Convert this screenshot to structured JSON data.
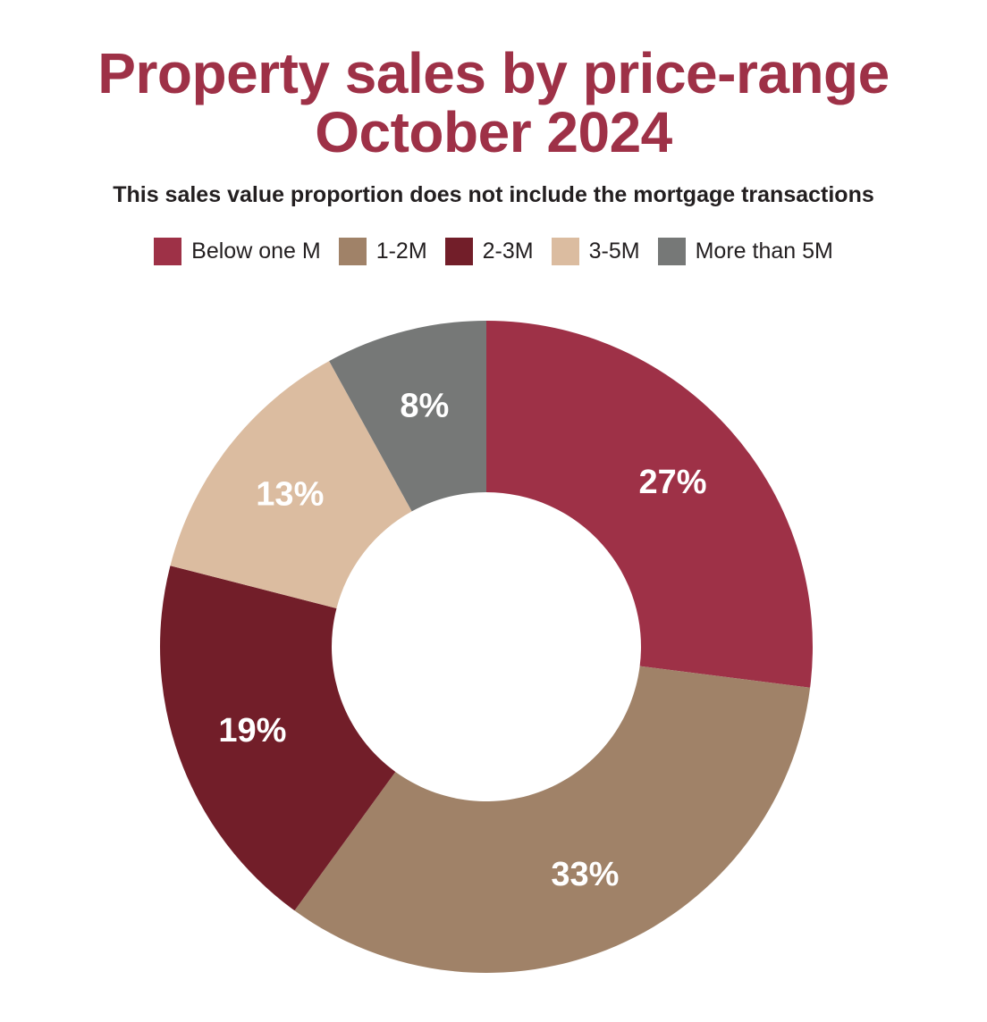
{
  "chart_data": {
    "type": "pie",
    "title": [
      "Property sales by price-range",
      "October 2024"
    ],
    "subtitle": "This sales value proportion does not include the mortgage transactions",
    "legend_position": "top",
    "donut": true,
    "categories": [
      "Below one M",
      "1-2M",
      "2-3M",
      "3-5M",
      "More than 5M"
    ],
    "values": [
      27,
      33,
      19,
      13,
      8
    ],
    "data_labels": [
      "27%",
      "33%",
      "19%",
      "13%",
      "8%"
    ],
    "colors": [
      "#9e3147",
      "#a08268",
      "#721e29",
      "#dbbca0",
      "#767877"
    ]
  }
}
